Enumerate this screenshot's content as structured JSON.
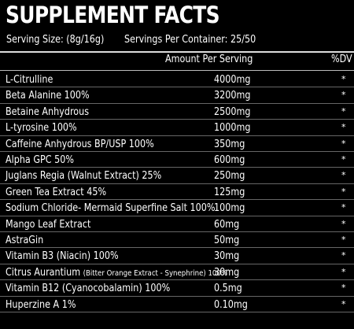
{
  "label": {
    "title": "SUPPLEMENT FACTS",
    "serving_size": "Serving Size: (8g/16g)",
    "servings_per_container": "Servings Per Container: 25/50",
    "header_amount": "Amount Per Serving",
    "header_dv": "%DV"
  },
  "ingredients": [
    {
      "name": "L-Citrulline",
      "amount": "4000mg",
      "dv": "*"
    },
    {
      "name": "Beta Alanine 100%",
      "amount": "3200mg",
      "dv": "*"
    },
    {
      "name": "Betaine Anhydrous",
      "amount": "2500mg",
      "dv": "*"
    },
    {
      "name": "L-tyrosine 100%",
      "amount": "1000mg",
      "dv": "*"
    },
    {
      "name": "Caffeine Anhydrous BP/USP 100%",
      "amount": "350mg",
      "dv": "*"
    },
    {
      "name": "Alpha GPC 50%",
      "amount": "600mg",
      "dv": "*"
    },
    {
      "name": "Juglans Regia (Walnut Extract) 25%",
      "amount": "250mg",
      "dv": "*"
    },
    {
      "name": "Green Tea Extract 45%",
      "amount": "125mg",
      "dv": "*"
    },
    {
      "name": "Sodium Chloride- Mermaid Superfine Salt 100%",
      "amount": "100mg",
      "dv": "*"
    },
    {
      "name": "Mango Leaf Extract",
      "amount": "60mg",
      "dv": "*"
    },
    {
      "name": "AstraGin",
      "amount": "50mg",
      "dv": "*"
    },
    {
      "name": "Vitamin B3 (Niacin) 100%",
      "amount": "30mg",
      "dv": "*"
    },
    {
      "name": "Citrus Aurantium",
      "name_detail": "(Bitter Orange Extract - Synephrine) 100%",
      "amount": "30mg",
      "dv": "*"
    },
    {
      "name": "Vitamin B12 (Cyanocobalamin) 100%",
      "amount": "0.5mg",
      "dv": "*"
    },
    {
      "name": "Huperzine A 1%",
      "amount": "0.10mg",
      "dv": "*"
    }
  ]
}
